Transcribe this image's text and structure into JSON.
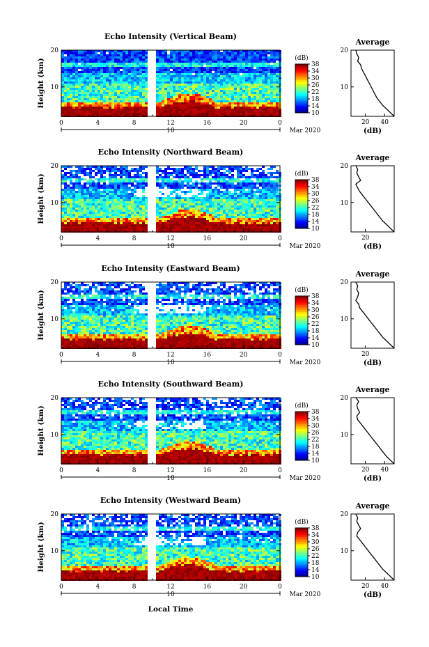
{
  "figure": {
    "x_axis_label": "Local Time",
    "date_label": "Mar 2020",
    "day_label": "10"
  },
  "chart_data": [
    {
      "type": "heatmap",
      "title": "Echo Intensity (Vertical Beam)",
      "ylabel": "Height (km)",
      "xlim": [
        0,
        24
      ],
      "ylim": [
        2,
        20
      ],
      "x_ticks": [
        "0",
        "4",
        "8",
        "12",
        "16",
        "20",
        "0"
      ],
      "y_ticks": [
        "20",
        "10"
      ],
      "colorbar": {
        "label": "(dB)",
        "ticks": [
          "38",
          "34",
          "30",
          "26",
          "22",
          "18",
          "14",
          "10"
        ],
        "range": [
          10,
          38
        ]
      },
      "missing_data_hours": [
        9.5,
        10.5
      ],
      "average_profile": {
        "title": "Average",
        "xlabel": "(dB)",
        "x_ticks": [
          "20",
          "40"
        ],
        "y_ticks": [
          "20",
          "10"
        ],
        "heights_km": [
          20,
          19,
          18,
          17,
          16,
          15,
          14,
          13,
          12,
          11,
          10,
          9,
          8,
          7,
          6,
          5,
          4,
          3,
          2
        ],
        "values_db": [
          10,
          11,
          13,
          12,
          15,
          16,
          18,
          20,
          22,
          24,
          26,
          28,
          30,
          32,
          35,
          38,
          42,
          46,
          50
        ]
      }
    },
    {
      "type": "heatmap",
      "title": "Echo Intensity (Northward Beam)",
      "ylabel": "Height (km)",
      "xlim": [
        0,
        24
      ],
      "ylim": [
        2,
        20
      ],
      "x_ticks": [
        "0",
        "4",
        "8",
        "12",
        "16",
        "20",
        "0"
      ],
      "y_ticks": [
        "20",
        "10"
      ],
      "colorbar": {
        "label": "(dB)",
        "ticks": [
          "38",
          "34",
          "30",
          "26",
          "22",
          "18",
          "14",
          "10"
        ],
        "range": [
          10,
          38
        ]
      },
      "missing_data_hours": [
        9.5,
        10.5
      ],
      "average_profile": {
        "title": "Average",
        "xlabel": "(dB)",
        "x_ticks": [
          "20"
        ],
        "y_ticks": [
          "20",
          "10"
        ],
        "heights_km": [
          20,
          19,
          18,
          17,
          16,
          15,
          14,
          13,
          12,
          11,
          10,
          9,
          8,
          7,
          6,
          5,
          4,
          3,
          2
        ],
        "values_db": [
          10,
          12,
          11,
          13,
          15,
          10,
          12,
          14,
          17,
          20,
          23,
          26,
          29,
          32,
          35,
          38,
          42,
          46,
          50
        ]
      }
    },
    {
      "type": "heatmap",
      "title": "Echo Intensity (Eastward Beam)",
      "ylabel": "Height (km)",
      "xlim": [
        0,
        24
      ],
      "ylim": [
        2,
        20
      ],
      "x_ticks": [
        "0",
        "4",
        "8",
        "12",
        "16",
        "20",
        "0"
      ],
      "y_ticks": [
        "20",
        "10"
      ],
      "colorbar": {
        "label": "(dB)",
        "ticks": [
          "38",
          "34",
          "30",
          "26",
          "22",
          "18",
          "14",
          "10"
        ],
        "range": [
          10,
          38
        ]
      },
      "missing_data_hours": [
        9.5,
        10.5
      ],
      "average_profile": {
        "title": "Average",
        "xlabel": "(dB)",
        "x_ticks": [
          "20"
        ],
        "y_ticks": [
          "20",
          "10"
        ],
        "heights_km": [
          20,
          19,
          18,
          17,
          16,
          15,
          14,
          13,
          12,
          11,
          10,
          9,
          8,
          7,
          6,
          5,
          4,
          3,
          2
        ],
        "values_db": [
          10,
          12,
          11,
          13,
          12,
          10,
          13,
          14,
          17,
          20,
          23,
          26,
          29,
          32,
          35,
          38,
          42,
          46,
          50
        ]
      }
    },
    {
      "type": "heatmap",
      "title": "Echo Intensity (Southward Beam)",
      "ylabel": "Height (km)",
      "xlim": [
        0,
        24
      ],
      "ylim": [
        2,
        20
      ],
      "x_ticks": [
        "0",
        "4",
        "8",
        "12",
        "16",
        "20",
        "0"
      ],
      "y_ticks": [
        "20",
        "10"
      ],
      "colorbar": {
        "label": "(dB)",
        "ticks": [
          "38",
          "34",
          "30",
          "26",
          "22",
          "18",
          "14",
          "10"
        ],
        "range": [
          10,
          38
        ]
      },
      "missing_data_hours": [
        9.5,
        10.5
      ],
      "average_profile": {
        "title": "Average",
        "xlabel": "(dB)",
        "x_ticks": [
          "20",
          "40"
        ],
        "y_ticks": [
          "20",
          "10"
        ],
        "heights_km": [
          20,
          19,
          18,
          17,
          16,
          15,
          14,
          13,
          12,
          11,
          10,
          9,
          8,
          7,
          6,
          5,
          4,
          3,
          2
        ],
        "values_db": [
          10,
          13,
          11,
          12,
          14,
          11,
          12,
          15,
          18,
          21,
          24,
          27,
          30,
          33,
          36,
          39,
          42,
          46,
          50
        ]
      }
    },
    {
      "type": "heatmap",
      "title": "Echo Intensity (Westward Beam)",
      "ylabel": "Height (km)",
      "xlim": [
        0,
        24
      ],
      "ylim": [
        2,
        20
      ],
      "x_ticks": [
        "0",
        "4",
        "8",
        "12",
        "16",
        "20",
        "0"
      ],
      "y_ticks": [
        "20",
        "10"
      ],
      "colorbar": {
        "label": "(dB)",
        "ticks": [
          "38",
          "34",
          "30",
          "26",
          "22",
          "18",
          "14",
          "10"
        ],
        "range": [
          10,
          38
        ]
      },
      "missing_data_hours": [
        9.5,
        10.5
      ],
      "average_profile": {
        "title": "Average",
        "xlabel": "(dB)",
        "x_ticks": [
          "20",
          "40"
        ],
        "y_ticks": [
          "20",
          "10"
        ],
        "heights_km": [
          20,
          19,
          18,
          17,
          16,
          15,
          14,
          13,
          12,
          11,
          10,
          9,
          8,
          7,
          6,
          5,
          4,
          3,
          2
        ],
        "values_db": [
          10,
          12,
          11,
          13,
          15,
          12,
          11,
          14,
          17,
          20,
          23,
          26,
          29,
          32,
          35,
          38,
          42,
          46,
          50
        ]
      }
    }
  ]
}
